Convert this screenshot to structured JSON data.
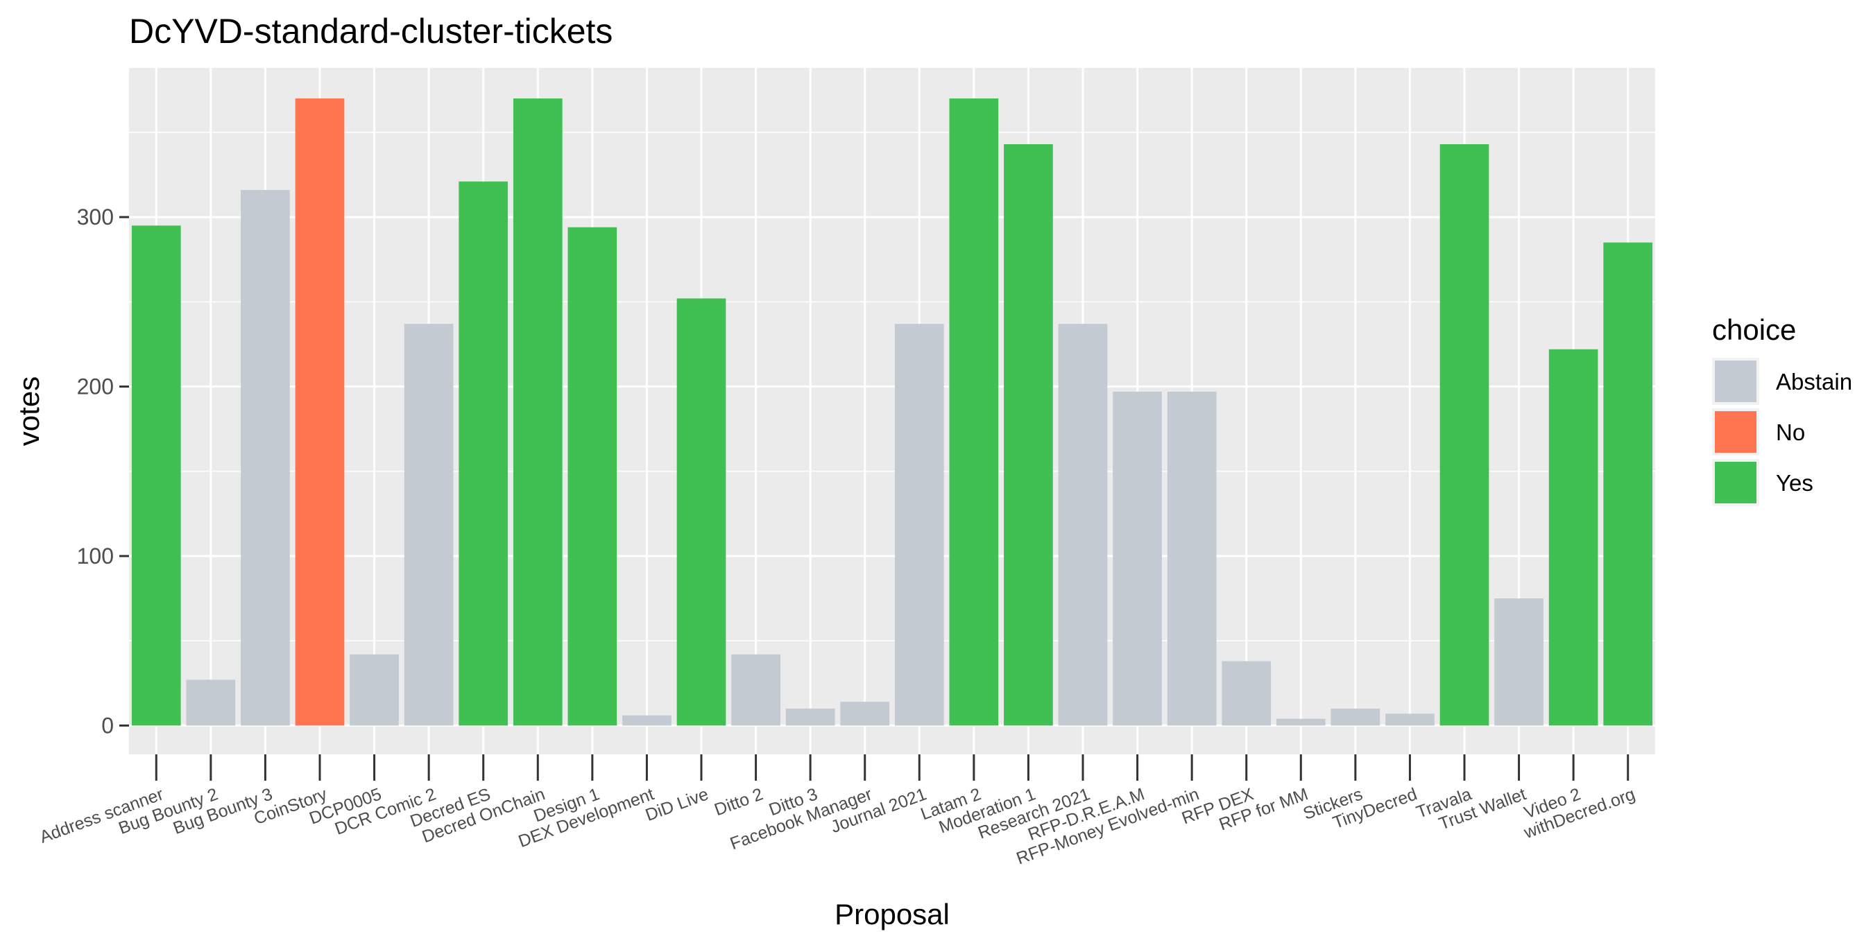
{
  "chart_data": {
    "type": "bar",
    "title": "DcYVD-standard-cluster-tickets",
    "xlabel": "Proposal",
    "ylabel": "votes",
    "ylim": [
      -17,
      388
    ],
    "yticks": [
      0,
      100,
      200,
      300
    ],
    "grid": true,
    "legend": {
      "title": "choice",
      "position": "right"
    },
    "choices": [
      {
        "name": "Abstain",
        "color": "#c4cad2"
      },
      {
        "name": "No",
        "color": "#ff7550"
      },
      {
        "name": "Yes",
        "color": "#40bf52"
      }
    ],
    "categories": [
      "Address scanner",
      "Bug Bounty 2",
      "Bug Bounty 3",
      "CoinStory",
      "DCP0005",
      "DCR Comic 2",
      "Decred ES",
      "Decred OnChain",
      "Design 1",
      "DEX Development",
      "DiD Live",
      "Ditto 2",
      "Ditto 3",
      "Facebook Manager",
      "Journal 2021",
      "Latam 2",
      "Moderation 1",
      "Research 2021",
      "RFP-D.R.E.A.M",
      "RFP-Money Evolved-min",
      "RFP DEX",
      "RFP for MM",
      "Stickers",
      "TinyDecred",
      "Travala",
      "Trust Wallet",
      "Video 2",
      "withDecred.org"
    ],
    "values": [
      295,
      27,
      316,
      370,
      42,
      237,
      321,
      370,
      294,
      6,
      252,
      42,
      10,
      14,
      237,
      370,
      343,
      237,
      197,
      197,
      38,
      4,
      10,
      7,
      343,
      75,
      222,
      285
    ],
    "choice": [
      "Yes",
      "Abstain",
      "Abstain",
      "No",
      "Abstain",
      "Abstain",
      "Yes",
      "Yes",
      "Yes",
      "Abstain",
      "Yes",
      "Abstain",
      "Abstain",
      "Abstain",
      "Abstain",
      "Yes",
      "Yes",
      "Abstain",
      "Abstain",
      "Abstain",
      "Abstain",
      "Abstain",
      "Abstain",
      "Abstain",
      "Yes",
      "Abstain",
      "Yes",
      "Yes"
    ]
  }
}
